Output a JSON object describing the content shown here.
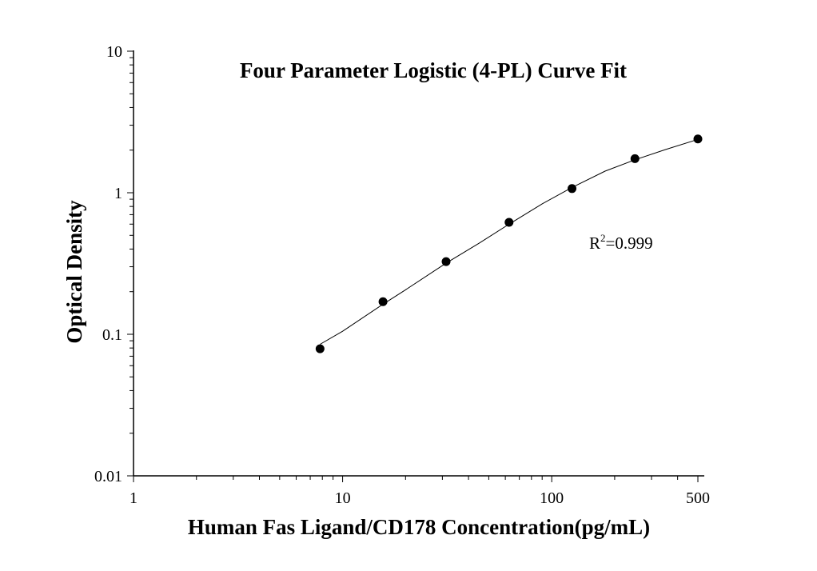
{
  "chart_data": {
    "type": "scatter",
    "title": "Four Parameter Logistic (4-PL) Curve Fit",
    "xlabel": "Human Fas Ligand/CD178 Concentration(pg/mL)",
    "ylabel": "Optical Density",
    "x_scale": "log",
    "y_scale": "log",
    "xlim": [
      1,
      500
    ],
    "ylim": [
      0.01,
      10
    ],
    "x_ticks": [
      {
        "value": 1,
        "label": "1"
      },
      {
        "value": 10,
        "label": "10"
      },
      {
        "value": 100,
        "label": "100"
      },
      {
        "value": 500,
        "label": "500"
      }
    ],
    "y_ticks": [
      {
        "value": 0.01,
        "label": "0.01"
      },
      {
        "value": 0.1,
        "label": "0.1"
      },
      {
        "value": 1,
        "label": "1"
      },
      {
        "value": 10,
        "label": "10"
      }
    ],
    "grid": false,
    "series": [
      {
        "x": [
          7.8,
          15.6,
          31.25,
          62.5,
          125,
          250,
          500
        ],
        "y": [
          0.079,
          0.17,
          0.326,
          0.618,
          1.07,
          1.74,
          2.4
        ]
      }
    ],
    "fit_curve": {
      "x": [
        7.8,
        10,
        15.6,
        20,
        31.25,
        45,
        62.5,
        90,
        125,
        180,
        250,
        350,
        500
      ],
      "y": [
        0.085,
        0.105,
        0.163,
        0.206,
        0.318,
        0.44,
        0.6,
        0.835,
        1.09,
        1.42,
        1.71,
        2.02,
        2.38
      ]
    },
    "annotation": {
      "prefix": "R",
      "superscript": "2",
      "suffix": "=0.999"
    },
    "colors": {
      "axis": "#000000",
      "points": "#000000",
      "curve": "#000000",
      "background": "#ffffff"
    }
  }
}
